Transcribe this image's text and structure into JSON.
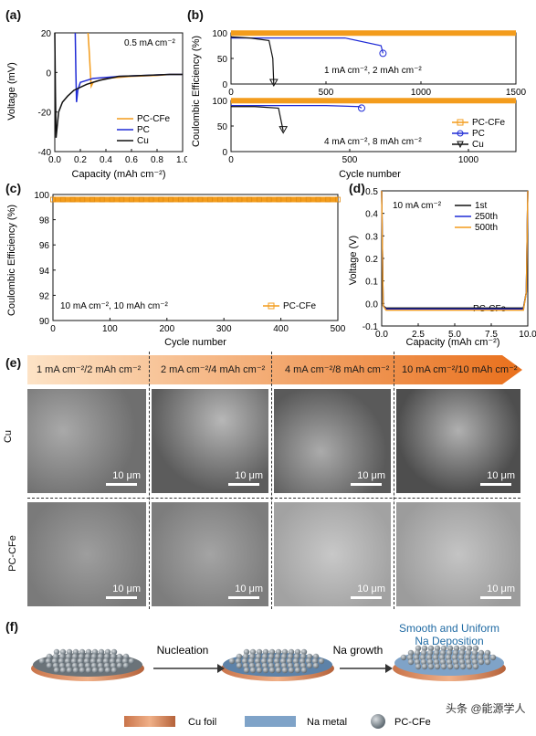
{
  "panels": {
    "a": "(a)",
    "b": "(b)",
    "c": "(c)",
    "d": "(d)",
    "e": "(e)",
    "f": "(f)"
  },
  "chart_data": [
    {
      "id": "a",
      "type": "line",
      "xlabel": "Capacity (mAh cm⁻²)",
      "ylabel": "Voltage (mV)",
      "xlim": [
        0.0,
        1.0
      ],
      "ylim": [
        -40,
        20
      ],
      "xticks": [
        "0.0",
        "0.2",
        "0.4",
        "0.6",
        "0.8",
        "1.0"
      ],
      "yticks": [
        "20",
        "0",
        "-20",
        "-40"
      ],
      "annotation": "0.5 mA cm⁻²",
      "legend": [
        "PC-CFe",
        "PC",
        "Cu"
      ],
      "series": [
        {
          "name": "PC-CFe",
          "color": "#f39c1c",
          "x": [
            0.26,
            0.27,
            0.28,
            0.285,
            0.3,
            0.4,
            0.6,
            0.8,
            0.9,
            1.0
          ],
          "y": [
            20,
            10,
            -2,
            -7,
            -5,
            -3,
            -2,
            -1.5,
            -1,
            -1
          ]
        },
        {
          "name": "PC",
          "color": "#1f2bd6",
          "x": [
            0.16,
            0.165,
            0.17,
            0.18,
            0.2,
            0.3,
            0.5,
            0.7,
            0.9,
            1.0
          ],
          "y": [
            20,
            0,
            -15,
            -9,
            -5,
            -3,
            -2,
            -1.5,
            -1,
            -1
          ]
        },
        {
          "name": "Cu",
          "color": "#111111",
          "x": [
            0.0,
            0.005,
            0.01,
            0.03,
            0.06,
            0.1,
            0.15,
            0.25,
            0.35,
            0.5,
            0.7,
            0.9,
            1.0
          ],
          "y": [
            20,
            -10,
            -33,
            -20,
            -15,
            -12,
            -9,
            -6,
            -4,
            -2,
            -1.5,
            -1,
            -1
          ]
        }
      ]
    },
    {
      "id": "b-top",
      "type": "scatter",
      "xlabel": "",
      "ylabel": "Coulombic Efficiency (%)",
      "xlim": [
        0,
        1500
      ],
      "ylim": [
        0,
        100
      ],
      "xticks": [
        "0",
        "500",
        "1000",
        "1500"
      ],
      "yticks": [
        "100",
        "50",
        "0"
      ],
      "annotation": "1 mA cm⁻², 2 mAh cm⁻²",
      "series": [
        {
          "name": "PC-CFe",
          "color": "#f39c1c",
          "x": [
            0,
            1500
          ],
          "y": [
            99.5,
            99.5
          ]
        },
        {
          "name": "PC",
          "color": "#1f2bd6",
          "x": [
            0,
            200,
            400,
            600,
            790,
            800
          ],
          "y": [
            90,
            90,
            90,
            90,
            75,
            60
          ]
        },
        {
          "name": "Cu",
          "color": "#111111",
          "x": [
            0,
            100,
            200,
            220,
            225
          ],
          "y": [
            92,
            90,
            85,
            50,
            0
          ]
        }
      ]
    },
    {
      "id": "b-bottom",
      "type": "scatter",
      "xlabel": "Cycle number",
      "ylabel": "Coulombic Efficiency (%)",
      "xlim": [
        0,
        1200
      ],
      "ylim": [
        0,
        100
      ],
      "xticks": [
        "0",
        "500",
        "1000"
      ],
      "yticks": [
        "100",
        "50",
        "0"
      ],
      "annotation": "4 mA cm⁻², 8 mAh cm⁻²",
      "legend": [
        "PC-CFe",
        "PC",
        "Cu"
      ],
      "series": [
        {
          "name": "PC-CFe",
          "color": "#f39c1c",
          "x": [
            0,
            1200
          ],
          "y": [
            99.5,
            99.5
          ]
        },
        {
          "name": "PC",
          "color": "#1f2bd6",
          "x": [
            0,
            200,
            400,
            540,
            550
          ],
          "y": [
            90,
            90,
            90,
            88,
            85
          ]
        },
        {
          "name": "Cu",
          "color": "#111111",
          "x": [
            0,
            100,
            200,
            220
          ],
          "y": [
            88,
            88,
            85,
            40
          ]
        }
      ]
    },
    {
      "id": "c",
      "type": "scatter",
      "xlabel": "Cycle number",
      "ylabel": "Coulombic Efficiency (%)",
      "xlim": [
        0,
        500
      ],
      "ylim": [
        90,
        100
      ],
      "xticks": [
        "0",
        "100",
        "200",
        "300",
        "400",
        "500"
      ],
      "yticks": [
        "100",
        "98",
        "96",
        "94",
        "92",
        "90"
      ],
      "annotation": "10 mA cm⁻², 10 mAh cm⁻²",
      "legend": [
        "PC-CFe"
      ],
      "series": [
        {
          "name": "PC-CFe",
          "color": "#f39c1c",
          "x": [
            0,
            500
          ],
          "y": [
            99.6,
            99.6
          ]
        }
      ]
    },
    {
      "id": "d",
      "type": "line",
      "xlabel": "Capacity (mAh cm⁻²)",
      "ylabel": "Voltage (V)",
      "xlim": [
        0.0,
        10.0
      ],
      "ylim": [
        -0.1,
        0.5
      ],
      "xticks": [
        "0.0",
        "2.5",
        "5.0",
        "7.5",
        "10.0"
      ],
      "yticks": [
        "0.5",
        "0.4",
        "0.3",
        "0.2",
        "0.1",
        "0.0",
        "-0.1"
      ],
      "annotation": "10 mA cm⁻²",
      "label_bottom": "PC-CFe",
      "legend": [
        "1st",
        "250th",
        "500th"
      ],
      "series": [
        {
          "name": "1st",
          "color": "#111111",
          "x": [
            0,
            0.1,
            0.3,
            5,
            9.7,
            9.9,
            10
          ],
          "y": [
            0.5,
            -0.01,
            -0.02,
            -0.02,
            -0.02,
            0.05,
            0.5
          ]
        },
        {
          "name": "250th",
          "color": "#1f2bd6",
          "x": [
            0,
            0.1,
            0.3,
            5,
            9.7,
            9.9,
            10
          ],
          "y": [
            0.5,
            -0.01,
            -0.025,
            -0.025,
            -0.025,
            0.05,
            0.5
          ]
        },
        {
          "name": "500th",
          "color": "#f39c1c",
          "x": [
            0,
            0.1,
            0.3,
            5,
            9.7,
            9.9,
            10
          ],
          "y": [
            0.5,
            -0.01,
            -0.03,
            -0.03,
            -0.03,
            0.05,
            0.5
          ]
        }
      ]
    }
  ],
  "panel_e": {
    "stages": [
      "1 mA cm⁻²/2 mAh cm⁻²",
      "2 mA cm⁻²/4 mAh cm⁻²",
      "4 mA cm⁻²/8 mAh cm⁻²",
      "10 mA cm⁻²/10 mAh cm⁻²"
    ],
    "rows": [
      "Cu",
      "PC-CFe"
    ],
    "scale_bar": "10 μm"
  },
  "panel_f": {
    "step1": "Nucleation",
    "step2": "Na growth",
    "result_line1": "Smooth and Uniform",
    "result_line2": "Na Deposition",
    "legend_cu": "Cu foil",
    "legend_na": "Na metal",
    "legend_pc": "PC-CFe",
    "watermark": "头条 @能源学人"
  }
}
